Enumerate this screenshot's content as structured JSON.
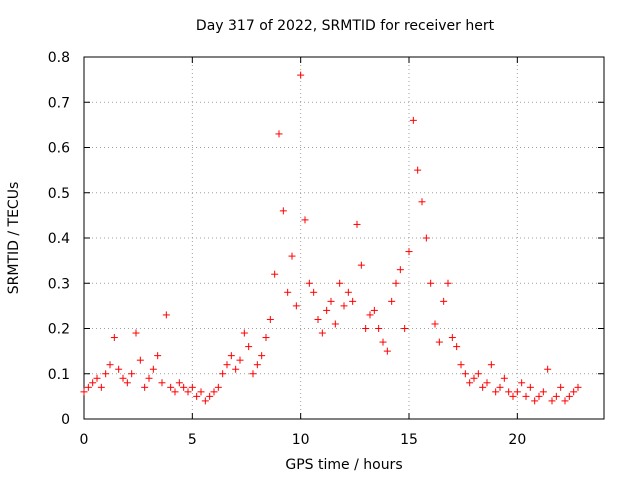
{
  "chart_data": {
    "type": "scatter",
    "title": "Day 317 of 2022, SRMTID for receiver hert",
    "xlabel": "GPS time / hours",
    "ylabel": "SRMTID / TECUs",
    "xlim": [
      0,
      24.0
    ],
    "ylim": [
      0,
      0.8
    ],
    "xticks": [
      0,
      5,
      10,
      15,
      20
    ],
    "yticks": [
      0,
      0.1,
      0.2,
      0.3,
      0.4,
      0.5,
      0.6,
      0.7,
      0.8
    ],
    "grid": true,
    "marker": "+",
    "color": "#ff0000",
    "series": [
      {
        "name": "SRMTID",
        "x": [
          0.0,
          0.2,
          0.4,
          0.6,
          0.8,
          1.0,
          1.2,
          1.4,
          1.6,
          1.8,
          2.0,
          2.2,
          2.4,
          2.6,
          2.8,
          3.0,
          3.2,
          3.4,
          3.6,
          3.8,
          4.0,
          4.2,
          4.4,
          4.6,
          4.8,
          5.0,
          5.2,
          5.4,
          5.6,
          5.8,
          6.0,
          6.2,
          6.4,
          6.6,
          6.8,
          7.0,
          7.2,
          7.4,
          7.6,
          7.8,
          8.0,
          8.2,
          8.4,
          8.6,
          8.8,
          9.0,
          9.2,
          9.4,
          9.6,
          9.8,
          10.0,
          10.2,
          10.4,
          10.6,
          10.8,
          11.0,
          11.2,
          11.4,
          11.6,
          11.8,
          12.0,
          12.2,
          12.4,
          12.6,
          12.8,
          13.0,
          13.2,
          13.4,
          13.6,
          13.8,
          14.0,
          14.2,
          14.4,
          14.6,
          14.8,
          15.0,
          15.2,
          15.4,
          15.6,
          15.8,
          16.0,
          16.2,
          16.4,
          16.6,
          16.8,
          17.0,
          17.2,
          17.4,
          17.6,
          17.8,
          18.0,
          18.2,
          18.4,
          18.6,
          18.8,
          19.0,
          19.2,
          19.4,
          19.6,
          19.8,
          20.0,
          20.2,
          20.4,
          20.6,
          20.8,
          21.0,
          21.2,
          21.4,
          21.6,
          21.8,
          22.0,
          22.2,
          22.4,
          22.6,
          22.8
        ],
        "y": [
          0.06,
          0.07,
          0.08,
          0.09,
          0.07,
          0.1,
          0.12,
          0.18,
          0.11,
          0.09,
          0.08,
          0.1,
          0.19,
          0.13,
          0.07,
          0.09,
          0.11,
          0.14,
          0.08,
          0.23,
          0.07,
          0.06,
          0.08,
          0.07,
          0.06,
          0.07,
          0.05,
          0.06,
          0.04,
          0.05,
          0.06,
          0.07,
          0.1,
          0.12,
          0.14,
          0.11,
          0.13,
          0.19,
          0.16,
          0.1,
          0.12,
          0.14,
          0.18,
          0.22,
          0.32,
          0.63,
          0.46,
          0.28,
          0.36,
          0.25,
          0.76,
          0.44,
          0.3,
          0.28,
          0.22,
          0.19,
          0.24,
          0.26,
          0.21,
          0.3,
          0.25,
          0.28,
          0.26,
          0.43,
          0.34,
          0.2,
          0.23,
          0.24,
          0.2,
          0.17,
          0.15,
          0.26,
          0.3,
          0.33,
          0.2,
          0.37,
          0.66,
          0.55,
          0.48,
          0.4,
          0.3,
          0.21,
          0.17,
          0.26,
          0.3,
          0.18,
          0.16,
          0.12,
          0.1,
          0.08,
          0.09,
          0.1,
          0.07,
          0.08,
          0.12,
          0.06,
          0.07,
          0.09,
          0.06,
          0.05,
          0.06,
          0.08,
          0.05,
          0.07,
          0.04,
          0.05,
          0.06,
          0.11,
          0.04,
          0.05,
          0.07,
          0.04,
          0.05,
          0.06,
          0.07
        ]
      }
    ]
  }
}
